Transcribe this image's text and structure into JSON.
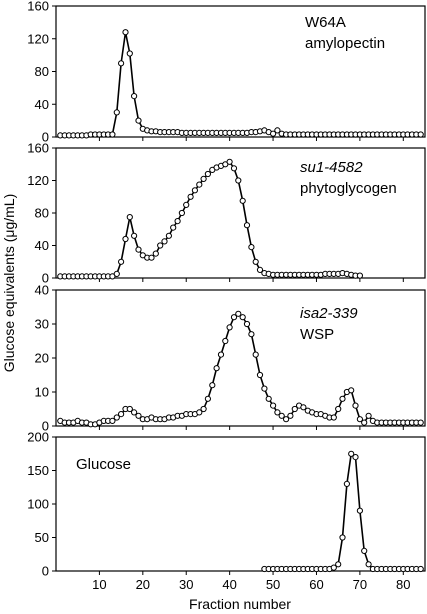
{
  "chart_data": [
    {
      "type": "line",
      "panel_label": [
        "W64A",
        "amylopectin"
      ],
      "label_italic": [
        false,
        false
      ],
      "ylim": [
        0,
        160
      ],
      "yticks": [
        0,
        40,
        80,
        120,
        160
      ],
      "series": [
        {
          "x": [
            1,
            2,
            3,
            4,
            5,
            6,
            7,
            8,
            9,
            10,
            11,
            12,
            13,
            14,
            15,
            16,
            17,
            18,
            19,
            20,
            21,
            22,
            23,
            24,
            25,
            26,
            27,
            28,
            29,
            30,
            31,
            32,
            33,
            34,
            35,
            36,
            37,
            38,
            39,
            40,
            41,
            42,
            43,
            44,
            45,
            46,
            47,
            48,
            49,
            50,
            51,
            52,
            53,
            54,
            55,
            56,
            57,
            58,
            59,
            60,
            61,
            62,
            63,
            64,
            65,
            66,
            67,
            68,
            69,
            70,
            71,
            72,
            73,
            74,
            75,
            76,
            77,
            78,
            79,
            80,
            81,
            82,
            83,
            84
          ],
          "y": [
            2,
            2,
            2,
            2,
            2,
            2,
            2,
            3,
            3,
            3,
            3,
            3,
            3,
            30,
            90,
            128,
            102,
            50,
            20,
            10,
            8,
            7,
            7,
            6,
            6,
            6,
            6,
            6,
            5,
            5,
            5,
            5,
            5,
            5,
            5,
            5,
            5,
            5,
            5,
            5,
            5,
            5,
            5,
            5,
            6,
            6,
            7,
            8,
            6,
            4,
            8,
            4,
            3,
            3,
            3,
            3,
            3,
            3,
            3,
            3,
            3,
            3,
            3,
            3,
            3,
            3,
            3,
            3,
            3,
            3,
            3,
            3,
            3,
            3,
            3,
            3,
            3,
            3,
            3,
            3,
            3,
            3,
            3,
            3
          ]
        }
      ]
    },
    {
      "type": "line",
      "panel_label": [
        "su1-4582",
        "phytoglycogen"
      ],
      "label_italic": [
        true,
        false
      ],
      "ylim": [
        0,
        160
      ],
      "yticks": [
        0,
        40,
        80,
        120,
        160
      ],
      "series": [
        {
          "x": [
            1,
            2,
            3,
            4,
            5,
            6,
            7,
            8,
            9,
            10,
            11,
            12,
            13,
            14,
            15,
            16,
            17,
            18,
            19,
            20,
            21,
            22,
            23,
            24,
            25,
            26,
            27,
            28,
            29,
            30,
            31,
            32,
            33,
            34,
            35,
            36,
            37,
            38,
            39,
            40,
            41,
            42,
            43,
            44,
            45,
            46,
            47,
            48,
            49,
            50,
            51,
            52,
            53,
            54,
            55,
            56,
            57,
            58,
            59,
            60,
            61,
            62,
            63,
            64,
            65,
            66,
            67,
            68,
            69,
            70
          ],
          "y": [
            2,
            2,
            2,
            2,
            2,
            2,
            2,
            2,
            2,
            2,
            2,
            2,
            2,
            5,
            20,
            48,
            75,
            52,
            35,
            28,
            25,
            25,
            30,
            40,
            45,
            52,
            62,
            70,
            80,
            90,
            100,
            108,
            115,
            122,
            128,
            133,
            136,
            138,
            140,
            143,
            135,
            120,
            95,
            65,
            38,
            20,
            10,
            6,
            5,
            4,
            4,
            4,
            4,
            4,
            4,
            4,
            4,
            4,
            4,
            4,
            4,
            5,
            5,
            5,
            5,
            6,
            5,
            4,
            3,
            3
          ]
        }
      ]
    },
    {
      "type": "line",
      "panel_label": [
        "isa2-339",
        "WSP"
      ],
      "label_italic": [
        true,
        false
      ],
      "ylim": [
        0,
        40
      ],
      "yticks": [
        0,
        10,
        20,
        30,
        40
      ],
      "series": [
        {
          "x": [
            1,
            2,
            3,
            4,
            5,
            6,
            7,
            8,
            9,
            10,
            11,
            12,
            13,
            14,
            15,
            16,
            17,
            18,
            19,
            20,
            21,
            22,
            23,
            24,
            25,
            26,
            27,
            28,
            29,
            30,
            31,
            32,
            33,
            34,
            35,
            36,
            37,
            38,
            39,
            40,
            41,
            42,
            43,
            44,
            45,
            46,
            47,
            48,
            49,
            50,
            51,
            52,
            53,
            54,
            55,
            56,
            57,
            58,
            59,
            60,
            61,
            62,
            63,
            64,
            65,
            66,
            67,
            68,
            69,
            70,
            71,
            72,
            73,
            74,
            75,
            76,
            77,
            78,
            79,
            80,
            81,
            82,
            83,
            84
          ],
          "y": [
            1.5,
            1,
            1,
            1,
            1.5,
            1,
            1,
            0.5,
            0.5,
            1,
            1.5,
            1.5,
            1.5,
            2.5,
            3.5,
            5,
            5,
            4,
            3,
            2,
            2,
            2.5,
            2,
            2,
            2,
            2.5,
            2.5,
            3,
            3,
            3.5,
            3.5,
            3.5,
            4,
            5,
            8,
            12,
            17,
            21,
            25,
            29,
            32,
            33,
            32,
            30,
            27,
            21,
            15,
            11,
            8,
            6,
            4,
            3,
            2,
            3,
            5,
            6,
            5.5,
            4.5,
            4,
            3.5,
            3.5,
            3,
            2.5,
            2.5,
            5,
            8,
            10,
            10.5,
            6,
            2,
            1,
            3,
            1.5,
            1,
            1,
            1,
            1,
            1,
            1,
            1,
            1,
            1,
            1,
            1
          ]
        }
      ]
    },
    {
      "type": "line",
      "panel_label": [
        "Glucose"
      ],
      "label_italic": [
        false
      ],
      "ylim": [
        0,
        200
      ],
      "yticks": [
        0,
        50,
        100,
        150,
        200
      ],
      "series": [
        {
          "x": [
            48,
            49,
            50,
            51,
            52,
            53,
            54,
            55,
            56,
            57,
            58,
            59,
            60,
            61,
            62,
            63,
            64,
            65,
            66,
            67,
            68,
            69,
            70,
            71,
            72,
            73,
            74,
            75,
            76,
            77,
            78,
            79,
            80,
            81,
            82,
            83,
            84
          ],
          "y": [
            3,
            3,
            3,
            3,
            3,
            3,
            3,
            3,
            3,
            3,
            3,
            3,
            3,
            3,
            3,
            3,
            5,
            10,
            50,
            130,
            175,
            170,
            90,
            30,
            10,
            3,
            3,
            3,
            3,
            3,
            3,
            3,
            3,
            3,
            3,
            3,
            3
          ]
        }
      ]
    }
  ],
  "axes": {
    "xlim": [
      0,
      85
    ],
    "xticks": [
      10,
      20,
      30,
      40,
      50,
      60,
      70,
      80
    ],
    "xlabel": "Fraction number",
    "ylabel": "Glucose equivalents (μg/mL)"
  }
}
